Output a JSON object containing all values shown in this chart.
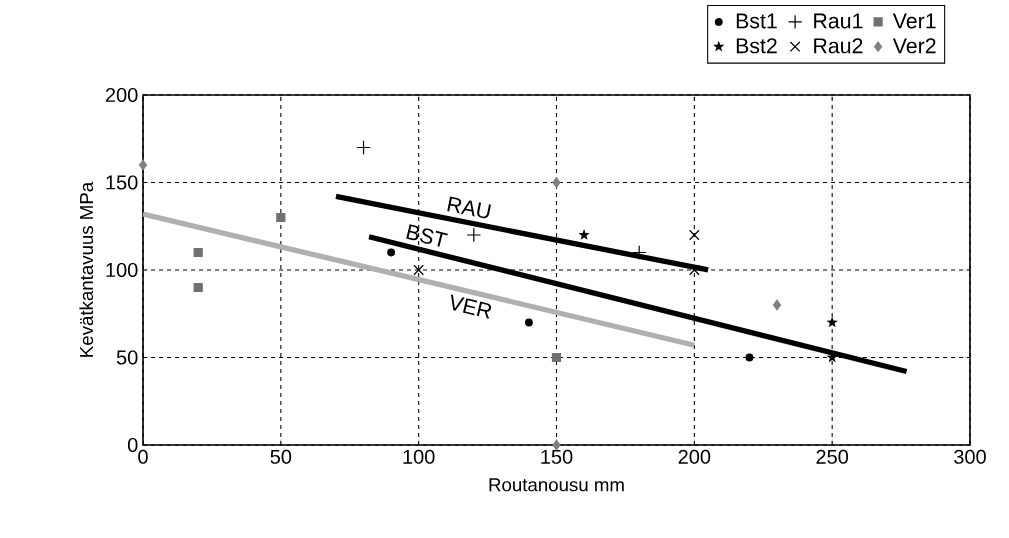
{
  "chart_data": {
    "type": "scatter",
    "xlabel": "Routanousu mm",
    "ylabel": "Kevätkantavuus MPa",
    "xlim": [
      0,
      300
    ],
    "xticks": [
      0,
      50,
      100,
      150,
      200,
      250,
      300
    ],
    "ylim": [
      0,
      200
    ],
    "yticks": [
      0,
      50,
      100,
      150,
      200
    ],
    "grid": true,
    "legend": "top right",
    "line_style": "dashed",
    "series": [
      {
        "name": "Bst1",
        "color": "#000000",
        "marker": "circle",
        "x": [
          90,
          140,
          220
        ],
        "values": [
          110,
          70,
          50
        ]
      },
      {
        "name": "Rau1",
        "color": "#000000",
        "marker": "plus",
        "x": [
          80,
          120,
          180
        ],
        "values": [
          170,
          120,
          110
        ]
      },
      {
        "name": "Ver1",
        "color": "#707070",
        "marker": "square",
        "x": [
          20,
          20,
          50,
          150
        ],
        "values": [
          110,
          90,
          130,
          50
        ]
      },
      {
        "name": "Bst2",
        "color": "#000000",
        "marker": "star",
        "x": [
          160,
          250,
          250
        ],
        "values": [
          120,
          70,
          50
        ]
      },
      {
        "name": "Rau2",
        "color": "#000000",
        "marker": "cross",
        "x": [
          100,
          200,
          200
        ],
        "values": [
          100,
          120,
          100
        ]
      },
      {
        "name": "Ver2",
        "color": "#808080",
        "marker": "diamond",
        "x": [
          0,
          150,
          230,
          150
        ],
        "values": [
          160,
          150,
          80,
          0
        ]
      },
      {
        "name": "RAU",
        "type": "line",
        "color": "#000000",
        "line_style": "solid",
        "x": [
          70,
          205
        ],
        "values": [
          142,
          100
        ]
      },
      {
        "name": "BST",
        "type": "line",
        "color": "#000000",
        "line_style": "solid",
        "x": [
          82,
          277
        ],
        "values": [
          119,
          42
        ]
      },
      {
        "name": "VER",
        "type": "line",
        "color": "#b0b0b0",
        "line_style": "solid",
        "x": [
          0,
          200
        ],
        "values": [
          132,
          57
        ]
      }
    ]
  }
}
